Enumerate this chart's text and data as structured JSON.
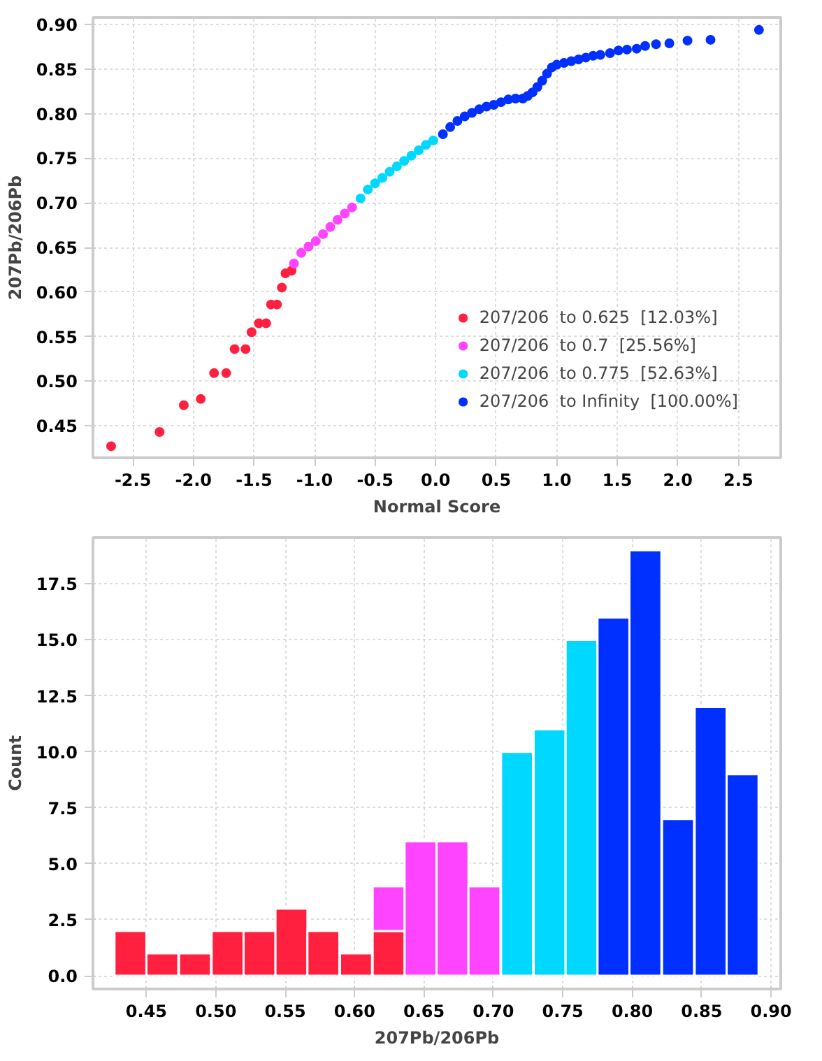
{
  "chart_data": [
    {
      "type": "scatter",
      "xlabel": "Normal Score",
      "ylabel": "207Pb/206Pb",
      "xlim": [
        -2.83,
        2.85
      ],
      "ylim": [
        0.414,
        0.908
      ],
      "xticks": [
        -2.5,
        {
          "value": -2,
          "label": "-2.0"
        },
        -1.5,
        {
          "value": -1,
          "label": "-1.0"
        },
        -0.5,
        {
          "value": 0,
          "label": "0.0"
        },
        0.5,
        {
          "value": 1,
          "label": "1.0"
        },
        1.5,
        {
          "value": 2,
          "label": "2.0"
        },
        2.5
      ],
      "yticks": [
        0.45,
        {
          "value": 0.5,
          "label": "0.50"
        },
        0.55,
        {
          "value": 0.6,
          "label": "0.60"
        },
        0.65,
        {
          "value": 0.7,
          "label": "0.70"
        },
        0.75,
        {
          "value": 0.8,
          "label": "0.80"
        },
        0.85,
        {
          "value": 0.9,
          "label": "0.90"
        }
      ],
      "grid": true,
      "legend": "bottom right",
      "marker": "circle",
      "series": [
        {
          "name": "207/206  to 0.625  [12.03%]",
          "color": "#ff2040",
          "x": [
            -2.68,
            -2.28,
            -2.08,
            -1.94,
            -1.83,
            -1.73,
            -1.66,
            -1.57,
            -1.52,
            -1.46,
            -1.4,
            -1.36,
            -1.31,
            -1.27,
            -1.24,
            -1.19
          ],
          "values": [
            0.427,
            0.443,
            0.473,
            0.48,
            0.509,
            0.509,
            0.536,
            0.536,
            0.555,
            0.565,
            0.565,
            0.586,
            0.586,
            0.605,
            0.621,
            0.624
          ]
        },
        {
          "name": "207/206  to 0.7  [25.56%]",
          "color": "#ff44ff",
          "x": [
            -1.17,
            -1.11,
            -1.05,
            -0.99,
            -0.93,
            -0.87,
            -0.81,
            -0.75,
            -0.69
          ],
          "values": [
            0.632,
            0.644,
            0.651,
            0.657,
            0.665,
            0.673,
            0.681,
            0.688,
            0.695
          ]
        },
        {
          "name": "207/206  to 0.775  [52.63%]",
          "color": "#00d8ff",
          "x": [
            -0.62,
            -0.56,
            -0.5,
            -0.44,
            -0.38,
            -0.32,
            -0.26,
            -0.2,
            -0.14,
            -0.08,
            -0.02
          ],
          "values": [
            0.705,
            0.715,
            0.722,
            0.728,
            0.735,
            0.741,
            0.747,
            0.753,
            0.759,
            0.765,
            0.77
          ]
        },
        {
          "name": "207/206  to Infinity  [100.00%]",
          "color": "#0030ff",
          "x": [
            0.06,
            0.12,
            0.18,
            0.24,
            0.3,
            0.36,
            0.42,
            0.48,
            0.54,
            0.6,
            0.66,
            0.72,
            0.76,
            0.8,
            0.84,
            0.88,
            0.92,
            0.96,
            1.0,
            1.06,
            1.12,
            1.18,
            1.24,
            1.3,
            1.36,
            1.44,
            1.51,
            1.58,
            1.66,
            1.73,
            1.82,
            1.93,
            2.08,
            2.27,
            2.67
          ],
          "values": [
            0.777,
            0.785,
            0.792,
            0.797,
            0.801,
            0.805,
            0.808,
            0.81,
            0.813,
            0.816,
            0.817,
            0.817,
            0.82,
            0.824,
            0.83,
            0.837,
            0.845,
            0.852,
            0.855,
            0.857,
            0.859,
            0.861,
            0.863,
            0.865,
            0.866,
            0.868,
            0.871,
            0.872,
            0.873,
            0.876,
            0.878,
            0.879,
            0.882,
            0.883,
            0.894
          ]
        }
      ]
    },
    {
      "type": "bar",
      "xlabel": "207Pb/206Pb",
      "ylabel": "Count",
      "xlim": [
        0.4115,
        0.907
      ],
      "ylim": [
        -0.59,
        19.57
      ],
      "xticks": [
        0.45,
        {
          "value": 0.5,
          "label": "0.50"
        },
        0.55,
        {
          "value": 0.6,
          "label": "0.60"
        },
        0.65,
        {
          "value": 0.7,
          "label": "0.70"
        },
        0.75,
        {
          "value": 0.8,
          "label": "0.80"
        },
        0.85,
        {
          "value": 0.9,
          "label": "0.90"
        }
      ],
      "yticks": [
        {
          "value": 0,
          "label": "0.0"
        },
        2.5,
        {
          "value": 5,
          "label": "5.0"
        },
        7.5,
        {
          "value": 10,
          "label": "10.0"
        },
        12.5,
        {
          "value": 15,
          "label": "15.0"
        },
        17.5
      ],
      "grid": true,
      "stacked": true,
      "x": [
        0.4385,
        0.4615,
        0.485,
        0.5085,
        0.5315,
        0.5545,
        0.5775,
        0.601,
        0.6245,
        0.6475,
        0.6705,
        0.6935,
        0.717,
        0.7405,
        0.7635,
        0.7865,
        0.8095,
        0.833,
        0.8565,
        0.8795
      ],
      "series": [
        {
          "color": "#ff2040",
          "values": [
            2,
            1,
            1,
            2,
            2,
            3,
            2,
            1,
            2,
            null,
            null,
            null,
            null,
            null,
            null,
            null,
            null,
            null,
            null,
            null
          ]
        },
        {
          "color": "#ff44ff",
          "values": [
            null,
            null,
            null,
            null,
            null,
            null,
            null,
            null,
            2,
            6,
            6,
            4,
            null,
            null,
            null,
            null,
            null,
            null,
            null,
            null
          ]
        },
        {
          "color": "#00d8ff",
          "values": [
            null,
            null,
            null,
            null,
            null,
            null,
            null,
            null,
            null,
            null,
            null,
            null,
            10,
            11,
            15,
            null,
            null,
            null,
            null,
            null
          ]
        },
        {
          "color": "#0030ff",
          "values": [
            null,
            null,
            null,
            null,
            null,
            null,
            null,
            null,
            null,
            null,
            null,
            null,
            null,
            null,
            null,
            16,
            19,
            7,
            12,
            9
          ]
        }
      ]
    }
  ]
}
